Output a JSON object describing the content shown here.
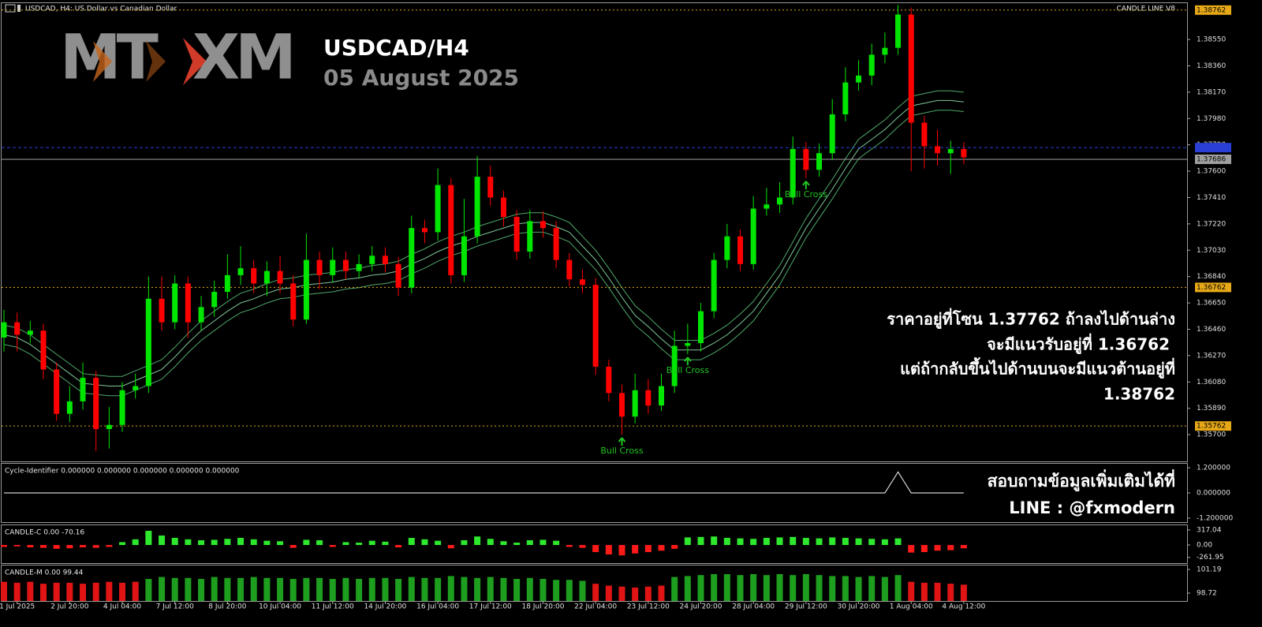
{
  "header": {
    "symbol_info": "USDCAD, H4: US Dollar vs Canadian Dollar",
    "indicator": "CANDLE LINE V8"
  },
  "logo": {
    "left": "MT",
    "right": "XM"
  },
  "overlay": {
    "title": "USDCAD/H4",
    "date": "05 August 2025",
    "note_lines": [
      "ราคาอยู่ที่โซน 1.37762 ถ้าลงไปด้านล่าง",
      "จะมีแนวรับอยู่ที่ 1.36762",
      "แต่ถ้ากลับขึ้นไปด้านบนจะมีแนวต้านอยู่ที่",
      "1.38762"
    ],
    "contact_lines": [
      "สอบถามข้อมูลเพิ่มเติมได้ที่",
      "LINE : @fxmodern"
    ]
  },
  "chart_data": [
    {
      "type": "candlestick",
      "up_color": "#00e600",
      "down_color": "#ff0000",
      "categories": [
        null,
        "1 Jul 2025",
        null,
        null,
        null,
        "2 Jul 20:00",
        null,
        null,
        null,
        "4 Jul 04:00",
        null,
        null,
        null,
        "7 Jul 12:00",
        null,
        null,
        null,
        "8 Jul 20:00",
        null,
        null,
        null,
        "10 Jul 04:00",
        null,
        null,
        null,
        "11 Jul 12:00",
        null,
        null,
        null,
        "14 Jul 20:00",
        null,
        null,
        null,
        "16 Jul 04:00",
        null,
        null,
        null,
        "17 Jul 12:00",
        null,
        null,
        null,
        "18 Jul 20:00",
        null,
        null,
        null,
        "22 Jul 04:00",
        null,
        null,
        null,
        "23 Jul 12:00",
        null,
        null,
        null,
        "24 Jul 20:00",
        null,
        null,
        null,
        "28 Jul 04:00",
        null,
        null,
        null,
        "29 Jul 12:00",
        null,
        null,
        null,
        "30 Jul 20:00",
        null,
        null,
        null,
        "1 Aug 04:00",
        null,
        null,
        null,
        "4 Aug 12:00"
      ],
      "open": [
        1.364,
        1.3651,
        1.3642,
        1.3645,
        1.3617,
        1.3585,
        1.3594,
        1.3611,
        1.3574,
        1.3577,
        1.3602,
        1.3605,
        1.3668,
        1.3651,
        1.3679,
        1.3651,
        1.3662,
        1.3673,
        1.3685,
        1.369,
        1.3679,
        1.3688,
        1.3679,
        1.3653,
        1.3696,
        1.3685,
        1.3696,
        1.3688,
        1.3693,
        1.3699,
        1.3693,
        1.3676,
        1.3719,
        1.3716,
        1.375,
        1.3685,
        1.3713,
        1.3756,
        1.3741,
        1.3727,
        1.3702,
        1.3724,
        1.3719,
        1.3696,
        1.3682,
        1.3678,
        1.3619,
        1.36,
        1.3583,
        1.3602,
        1.3591,
        1.3605,
        1.3634,
        1.3636,
        1.3659,
        1.3696,
        1.3713,
        1.3693,
        1.3733,
        1.3736,
        1.3741,
        1.3776,
        1.3761,
        1.3773,
        1.3801,
        1.3824,
        1.3829,
        1.3844,
        1.3849,
        1.3873,
        1.3795,
        1.3778,
        1.3773,
        1.3776
      ],
      "high": [
        1.366,
        1.3658,
        1.3652,
        1.365,
        1.3622,
        1.3605,
        1.3622,
        1.3616,
        1.359,
        1.3608,
        1.3614,
        1.3684,
        1.3684,
        1.3685,
        1.3684,
        1.367,
        1.3681,
        1.37,
        1.3706,
        1.3696,
        1.3695,
        1.3699,
        1.3685,
        1.3715,
        1.3702,
        1.3705,
        1.3702,
        1.37,
        1.3706,
        1.3705,
        1.3698,
        1.3728,
        1.3725,
        1.3762,
        1.3755,
        1.374,
        1.3771,
        1.3764,
        1.3746,
        1.3732,
        1.3732,
        1.3731,
        1.3724,
        1.3701,
        1.3689,
        1.3683,
        1.3624,
        1.3606,
        1.3614,
        1.361,
        1.3614,
        1.3645,
        1.365,
        1.3665,
        1.3701,
        1.3722,
        1.3718,
        1.3742,
        1.3748,
        1.3752,
        1.3785,
        1.3781,
        1.378,
        1.3812,
        1.3835,
        1.384,
        1.3852,
        1.386,
        1.388,
        1.3878,
        1.38,
        1.379,
        1.3782,
        1.3781
      ],
      "low": [
        1.363,
        1.363,
        1.3636,
        1.361,
        1.358,
        1.3579,
        1.3588,
        1.3558,
        1.356,
        1.3572,
        1.3596,
        1.36,
        1.3645,
        1.3646,
        1.364,
        1.3645,
        1.3655,
        1.3668,
        1.3678,
        1.3672,
        1.367,
        1.3672,
        1.3648,
        1.365,
        1.3675,
        1.368,
        1.3682,
        1.3683,
        1.3688,
        1.3687,
        1.367,
        1.3672,
        1.3708,
        1.371,
        1.3679,
        1.368,
        1.3708,
        1.3735,
        1.372,
        1.3696,
        1.3697,
        1.3712,
        1.369,
        1.3677,
        1.3672,
        1.3613,
        1.3594,
        1.357,
        1.3578,
        1.3585,
        1.3587,
        1.36,
        1.3628,
        1.363,
        1.3654,
        1.369,
        1.3688,
        1.3689,
        1.3728,
        1.373,
        1.3736,
        1.3755,
        1.3756,
        1.3768,
        1.3796,
        1.3818,
        1.3822,
        1.3838,
        1.3844,
        1.376,
        1.3762,
        1.3764,
        1.3758,
        1.3765
      ],
      "close": [
        1.3651,
        1.3642,
        1.3645,
        1.3617,
        1.3585,
        1.3594,
        1.3611,
        1.3574,
        1.3577,
        1.3602,
        1.3605,
        1.3668,
        1.3651,
        1.3679,
        1.3651,
        1.3662,
        1.3673,
        1.3685,
        1.369,
        1.3679,
        1.3688,
        1.3679,
        1.3653,
        1.3696,
        1.3685,
        1.3696,
        1.3688,
        1.3693,
        1.3699,
        1.3693,
        1.3676,
        1.3719,
        1.3716,
        1.375,
        1.3685,
        1.3713,
        1.3756,
        1.3741,
        1.3727,
        1.3702,
        1.3724,
        1.3719,
        1.3696,
        1.3682,
        1.3678,
        1.3619,
        1.36,
        1.3583,
        1.3602,
        1.3591,
        1.3605,
        1.3634,
        1.3636,
        1.3659,
        1.3696,
        1.3713,
        1.3693,
        1.3733,
        1.3736,
        1.3741,
        1.3776,
        1.3761,
        1.3773,
        1.3801,
        1.3824,
        1.3829,
        1.3844,
        1.3849,
        1.3873,
        1.3795,
        1.3778,
        1.3773,
        1.3776,
        1.377
      ],
      "series": [
        {
          "color": "#4fa86a",
          "values": [
            1.3649,
            1.3647,
            1.3642,
            1.3635,
            1.3628,
            1.3621,
            1.3614,
            1.3613,
            1.3612,
            1.3612,
            1.3616,
            1.362,
            1.3624,
            1.3633,
            1.3643,
            1.3652,
            1.3659,
            1.3666,
            1.3672,
            1.3675,
            1.3679,
            1.3682,
            1.3683,
            1.3685,
            1.3686,
            1.3687,
            1.3689,
            1.369,
            1.3692,
            1.3693,
            1.3695,
            1.37,
            1.3704,
            1.3709,
            1.3713,
            1.3716,
            1.372,
            1.3723,
            1.3726,
            1.3729,
            1.373,
            1.373,
            1.3727,
            1.3723,
            1.3713,
            1.3703,
            1.369,
            1.3676,
            1.3663,
            1.3655,
            1.3646,
            1.3638,
            1.3638,
            1.3638,
            1.3643,
            1.3649,
            1.3657,
            1.3666,
            1.3679,
            1.3692,
            1.3709,
            1.3726,
            1.374,
            1.3754,
            1.3769,
            1.3783,
            1.379,
            1.3797,
            1.3806,
            1.3814,
            1.3816,
            1.3818,
            1.3818,
            1.3817
          ]
        },
        {
          "color": "#7fc79a",
          "values": [
            1.3642,
            1.364,
            1.3635,
            1.3628,
            1.3621,
            1.3614,
            1.3607,
            1.3606,
            1.3605,
            1.3605,
            1.3609,
            1.3613,
            1.3617,
            1.3626,
            1.3636,
            1.3645,
            1.3652,
            1.3659,
            1.3665,
            1.3668,
            1.3672,
            1.3675,
            1.3676,
            1.3678,
            1.3679,
            1.368,
            1.3682,
            1.3683,
            1.3685,
            1.3686,
            1.3688,
            1.3693,
            1.3697,
            1.3702,
            1.3706,
            1.3709,
            1.3713,
            1.3716,
            1.3719,
            1.3722,
            1.3723,
            1.3723,
            1.372,
            1.3716,
            1.3706,
            1.3696,
            1.3683,
            1.3669,
            1.3656,
            1.3648,
            1.3639,
            1.3631,
            1.3631,
            1.3631,
            1.3636,
            1.3642,
            1.365,
            1.3659,
            1.3672,
            1.3685,
            1.3702,
            1.3719,
            1.3733,
            1.3747,
            1.3762,
            1.3776,
            1.3783,
            1.379,
            1.3799,
            1.3807,
            1.3809,
            1.3811,
            1.3811,
            1.381
          ]
        },
        {
          "color": "#4fa86a",
          "values": [
            1.3635,
            1.3633,
            1.3628,
            1.3621,
            1.3614,
            1.3607,
            1.36,
            1.3599,
            1.3598,
            1.3598,
            1.3602,
            1.3606,
            1.361,
            1.3619,
            1.3629,
            1.3638,
            1.3645,
            1.3652,
            1.3658,
            1.3661,
            1.3665,
            1.3668,
            1.3669,
            1.3671,
            1.3672,
            1.3673,
            1.3675,
            1.3676,
            1.3678,
            1.3679,
            1.3681,
            1.3686,
            1.369,
            1.3695,
            1.3699,
            1.3702,
            1.3706,
            1.3709,
            1.3712,
            1.3715,
            1.3716,
            1.3716,
            1.3713,
            1.3709,
            1.3699,
            1.3689,
            1.3676,
            1.3662,
            1.3649,
            1.3641,
            1.3632,
            1.3624,
            1.3624,
            1.3624,
            1.3629,
            1.3635,
            1.3643,
            1.3652,
            1.3665,
            1.3678,
            1.3695,
            1.3712,
            1.3726,
            1.374,
            1.3755,
            1.3769,
            1.3776,
            1.3783,
            1.3792,
            1.38,
            1.3802,
            1.3804,
            1.3804,
            1.3803
          ]
        }
      ],
      "levels": [
        {
          "value": 1.38762,
          "label": "1.38762",
          "color": "#e6a817",
          "style": "dotted"
        },
        {
          "value": 1.36762,
          "label": "1.36762",
          "color": "#e6a817",
          "style": "dotted"
        },
        {
          "value": 1.35762,
          "label": "1.35762",
          "color": "#e6a817",
          "style": "dotted"
        },
        {
          "value": 1.3777,
          "color": "#2a3fd6",
          "style": "dashed"
        },
        {
          "value": 1.37686,
          "label": "1.37686",
          "color": "#a0a0a0",
          "style": "solid"
        }
      ],
      "annotations": [
        {
          "text": "Bull Cross",
          "index": 47,
          "color": "#22c422"
        },
        {
          "text": "Bull Cross",
          "index": 52,
          "color": "#22c422"
        },
        {
          "text": "Bull Cross",
          "index": 61,
          "color": "#22c422"
        }
      ],
      "ylim": [
        1.35507,
        1.38812
      ],
      "yticks": [
        {
          "value": 1.357,
          "label": "1.35700"
        },
        {
          "value": 1.3589,
          "label": "1.35890"
        },
        {
          "value": 1.3608,
          "label": "1.36080"
        },
        {
          "value": 1.3627,
          "label": "1.36270"
        },
        {
          "value": 1.3646,
          "label": "1.36460"
        },
        {
          "value": 1.3665,
          "label": "1.36650"
        },
        {
          "value": 1.3684,
          "label": "1.36840"
        },
        {
          "value": 1.3703,
          "label": "1.37030"
        },
        {
          "value": 1.3722,
          "label": "1.37220"
        },
        {
          "value": 1.3741,
          "label": "1.37410"
        },
        {
          "value": 1.376,
          "label": "1.37600"
        },
        {
          "value": 1.3779,
          "label": "1.37790"
        },
        {
          "value": 1.3798,
          "label": "1.37980"
        },
        {
          "value": 1.3817,
          "label": "1.38170"
        },
        {
          "value": 1.3836,
          "label": "1.38360"
        },
        {
          "value": 1.3855,
          "label": "1.38550"
        }
      ]
    },
    {
      "type": "line",
      "title": "Cycle-Identifier 0.000000 0.000000 0.000000 0.000000 0.000000",
      "color": "#d0d0d0",
      "values": [
        0,
        0,
        0,
        0,
        0,
        0,
        0,
        0,
        0,
        0,
        0,
        0,
        0,
        0,
        0,
        0,
        0,
        0,
        0,
        0,
        0,
        0,
        0,
        0,
        0,
        0,
        0,
        0,
        0,
        0,
        0,
        0,
        0,
        0,
        0,
        0,
        0,
        0,
        0,
        0,
        0,
        0,
        0,
        0,
        0,
        0,
        0,
        0,
        0,
        0,
        0,
        0,
        0,
        0,
        0,
        0,
        0,
        0,
        0,
        0,
        0,
        0,
        0,
        0,
        0,
        0,
        0,
        0,
        1.0,
        0,
        0,
        0,
        0,
        0
      ],
      "ylim": [
        -1.39,
        1.39
      ],
      "yticks": [
        {
          "value": 1.2,
          "label": "1.200000"
        },
        {
          "value": 0,
          "label": "0.000000"
        },
        {
          "value": -1.2,
          "label": "-1.200000"
        }
      ]
    },
    {
      "type": "histogram",
      "title": "CANDLE-C 0.00 -70.16",
      "up_color": "#2ee82e",
      "down_color": "#ff1a1a",
      "values": [
        -40,
        -30,
        -50,
        -60,
        -80,
        -70,
        -50,
        -60,
        -40,
        60,
        120,
        300,
        200,
        150,
        120,
        100,
        110,
        130,
        150,
        120,
        90,
        80,
        -60,
        110,
        100,
        -40,
        60,
        50,
        90,
        70,
        -50,
        150,
        120,
        90,
        -70,
        100,
        180,
        130,
        80,
        50,
        100,
        110,
        90,
        -40,
        -60,
        -150,
        -200,
        -220,
        -180,
        -150,
        -120,
        -80,
        160,
        170,
        180,
        150,
        140,
        130,
        150,
        160,
        170,
        150,
        140,
        160,
        150,
        140,
        130,
        120,
        140,
        -160,
        -150,
        -120,
        -110,
        -70
      ],
      "ylim": [
        -383,
        417
      ],
      "yticks": [
        {
          "value": 317.04,
          "label": "317.04"
        },
        {
          "value": 0,
          "label": "0.00"
        },
        {
          "value": -261.95,
          "label": "-261.95"
        }
      ]
    },
    {
      "type": "histogram",
      "title": "CANDLE-M 0.00 99.44",
      "series": [
        {
          "color": "#1e9e1e",
          "values": [
            null,
            null,
            null,
            null,
            null,
            null,
            null,
            null,
            null,
            null,
            null,
            100.2,
            100.4,
            100.3,
            100.3,
            100.2,
            100.4,
            100.3,
            100.3,
            100.4,
            100.3,
            100.3,
            100.2,
            100.3,
            100.3,
            100.2,
            100.3,
            100.2,
            100.3,
            100.3,
            100.2,
            100.4,
            100.3,
            100.3,
            100.5,
            100.4,
            100.3,
            100.4,
            100.3,
            100.2,
            100.3,
            100.2,
            100.1,
            100.1,
            100.0,
            null,
            null,
            null,
            null,
            null,
            null,
            100.4,
            100.5,
            100.6,
            100.7,
            100.7,
            100.6,
            100.7,
            100.6,
            100.7,
            100.6,
            100.7,
            100.6,
            100.5,
            100.5,
            100.4,
            100.5,
            100.4,
            100.6,
            null,
            null,
            null,
            null,
            null
          ]
        },
        {
          "color": "#e01414",
          "values": [
            99.9,
            99.8,
            99.9,
            99.7,
            99.8,
            99.8,
            99.7,
            99.8,
            99.9,
            99.8,
            99.9,
            null,
            null,
            null,
            null,
            null,
            null,
            null,
            null,
            null,
            null,
            null,
            null,
            null,
            null,
            null,
            null,
            null,
            null,
            null,
            null,
            null,
            null,
            null,
            null,
            null,
            null,
            null,
            null,
            null,
            null,
            null,
            null,
            null,
            null,
            99.7,
            99.5,
            99.4,
            99.3,
            99.4,
            99.5,
            null,
            null,
            null,
            null,
            null,
            null,
            null,
            null,
            null,
            null,
            null,
            null,
            null,
            null,
            null,
            null,
            null,
            null,
            99.9,
            99.8,
            99.8,
            99.7,
            99.6
          ]
        }
      ],
      "ylim": [
        97.9,
        101.6
      ],
      "yticks": [
        {
          "value": 101.19,
          "label": "101.19"
        },
        {
          "value": 98.72,
          "label": "98.72"
        }
      ]
    }
  ]
}
